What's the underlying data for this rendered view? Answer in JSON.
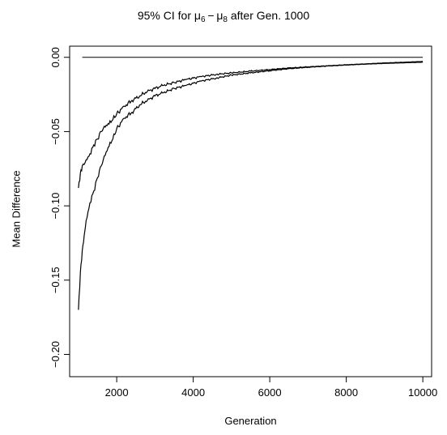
{
  "chart_data": {
    "type": "line",
    "title_parts": [
      "95% CI for ",
      "μ",
      "6",
      " − ",
      "μ",
      "8",
      " after Gen. 1000"
    ],
    "xlabel": "Generation",
    "ylabel": "Mean Difference",
    "xlim": [
      770,
      10230
    ],
    "ylim": [
      -0.215,
      0.0075
    ],
    "x_ticks": [
      2000,
      4000,
      6000,
      8000,
      10000
    ],
    "x_tick_labels": [
      "2000",
      "4000",
      "6000",
      "8000",
      "10000"
    ],
    "y_ticks": [
      0.0,
      -0.05,
      -0.1,
      -0.15,
      -0.2
    ],
    "y_tick_labels": [
      "0.00",
      "−0.05",
      "−0.10",
      "−0.15",
      "−0.20"
    ],
    "grid": false,
    "legend": "none",
    "reference_line": {
      "y": 0.0,
      "x": [
        1100,
        10000
      ]
    },
    "series": [
      {
        "role": "upper",
        "x": [
          1000,
          1050,
          1100,
          1200,
          1300,
          1400,
          1500,
          1600,
          1700,
          1800,
          1900,
          2000,
          2200,
          2400,
          2600,
          2800,
          3000,
          3200,
          3500,
          3800,
          4200,
          4600,
          5000,
          5500,
          6000,
          6500,
          7000,
          7500,
          8000,
          8500,
          9000,
          9500,
          10000
        ],
        "values": [
          -0.088,
          -0.078,
          -0.073,
          -0.069,
          -0.065,
          -0.059,
          -0.055,
          -0.05,
          -0.047,
          -0.045,
          -0.042,
          -0.038,
          -0.033,
          -0.029,
          -0.026,
          -0.023,
          -0.021,
          -0.019,
          -0.017,
          -0.015,
          -0.013,
          -0.0115,
          -0.0105,
          -0.0093,
          -0.0082,
          -0.0072,
          -0.0064,
          -0.0057,
          -0.005,
          -0.0044,
          -0.0038,
          -0.0033,
          -0.0028
        ]
      },
      {
        "role": "lower",
        "x": [
          1000,
          1050,
          1100,
          1150,
          1200,
          1300,
          1400,
          1500,
          1600,
          1700,
          1800,
          1900,
          2000,
          2200,
          2400,
          2600,
          2800,
          3000,
          3200,
          3500,
          3800,
          4200,
          4600,
          5000,
          5500,
          6000,
          6500,
          7000,
          7500,
          8000,
          8500,
          9000,
          9500,
          10000
        ],
        "values": [
          -0.17,
          -0.145,
          -0.13,
          -0.12,
          -0.11,
          -0.098,
          -0.09,
          -0.081,
          -0.073,
          -0.066,
          -0.06,
          -0.055,
          -0.048,
          -0.041,
          -0.037,
          -0.032,
          -0.029,
          -0.026,
          -0.024,
          -0.021,
          -0.019,
          -0.016,
          -0.014,
          -0.012,
          -0.0105,
          -0.009,
          -0.0077,
          -0.0067,
          -0.0059,
          -0.0052,
          -0.0046,
          -0.0041,
          -0.0037,
          -0.0033
        ]
      }
    ]
  }
}
